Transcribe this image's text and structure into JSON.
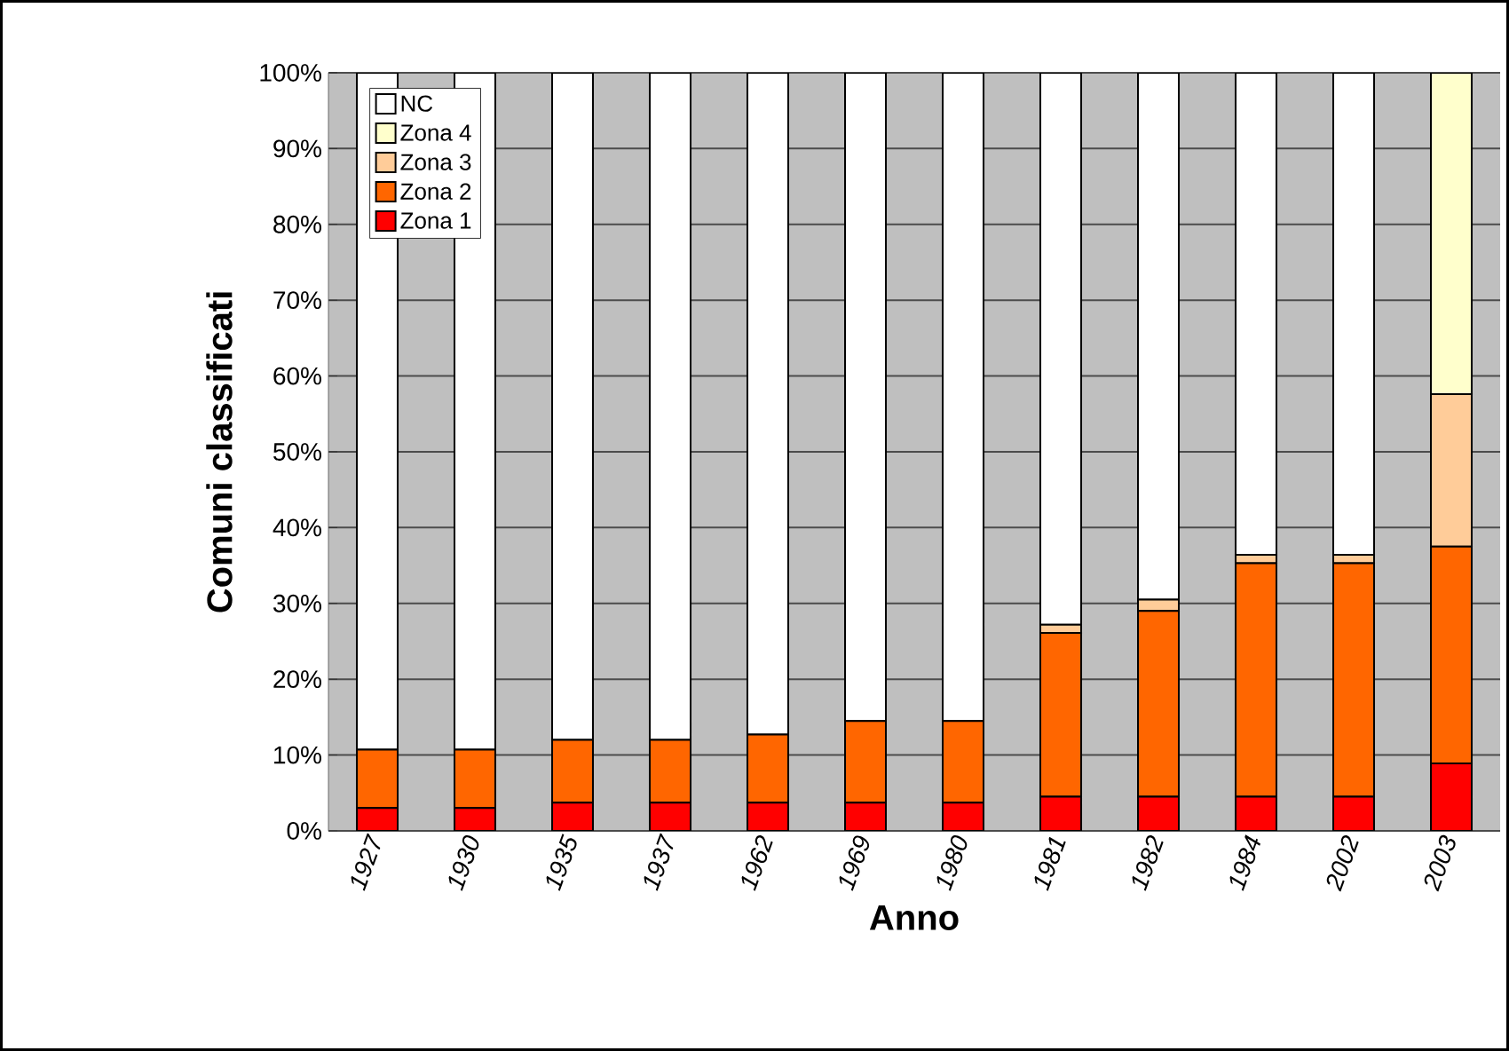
{
  "chart_data": {
    "type": "bar",
    "stacked": true,
    "xlabel": "Anno",
    "ylabel": "Comuni classificati",
    "categories": [
      "1927",
      "1930",
      "1935",
      "1937",
      "1962",
      "1969",
      "1980",
      "1981",
      "1982",
      "1984",
      "2002",
      "2003"
    ],
    "series": [
      {
        "name": "Zona 1",
        "color": "#ff0000",
        "values": [
          3.0,
          3.0,
          3.7,
          3.7,
          3.7,
          3.7,
          3.7,
          4.5,
          4.5,
          4.5,
          4.5,
          8.9
        ]
      },
      {
        "name": "Zona 2",
        "color": "#ff6600",
        "values": [
          7.7,
          7.7,
          8.3,
          8.3,
          9.0,
          10.8,
          10.8,
          21.6,
          24.5,
          30.8,
          30.8,
          28.6
        ]
      },
      {
        "name": "Zona 3",
        "color": "#ffcc99",
        "values": [
          0,
          0,
          0,
          0,
          0,
          0,
          0,
          1.1,
          1.5,
          1.1,
          1.1,
          20.1
        ]
      },
      {
        "name": "Zona 4",
        "color": "#ffffcc",
        "values": [
          0,
          0,
          0,
          0,
          0,
          0,
          0,
          0,
          0,
          0,
          0,
          42.4
        ]
      },
      {
        "name": "NC",
        "color": "#ffffff",
        "values": [
          89.3,
          89.3,
          88.0,
          88.0,
          87.3,
          85.5,
          85.5,
          72.8,
          69.5,
          63.6,
          63.6,
          0
        ]
      }
    ],
    "ylim": [
      0,
      100
    ],
    "yticks": [
      {
        "value": 0,
        "label": "0%"
      },
      {
        "value": 10,
        "label": "10%"
      },
      {
        "value": 20,
        "label": "20%"
      },
      {
        "value": 30,
        "label": "30%"
      },
      {
        "value": 40,
        "label": "40%"
      },
      {
        "value": 50,
        "label": "50%"
      },
      {
        "value": 60,
        "label": "60%"
      },
      {
        "value": 70,
        "label": "70%"
      },
      {
        "value": 80,
        "label": "80%"
      },
      {
        "value": 90,
        "label": "90%"
      },
      {
        "value": 100,
        "label": "100%"
      }
    ],
    "grid": "y",
    "legend": "top left"
  }
}
